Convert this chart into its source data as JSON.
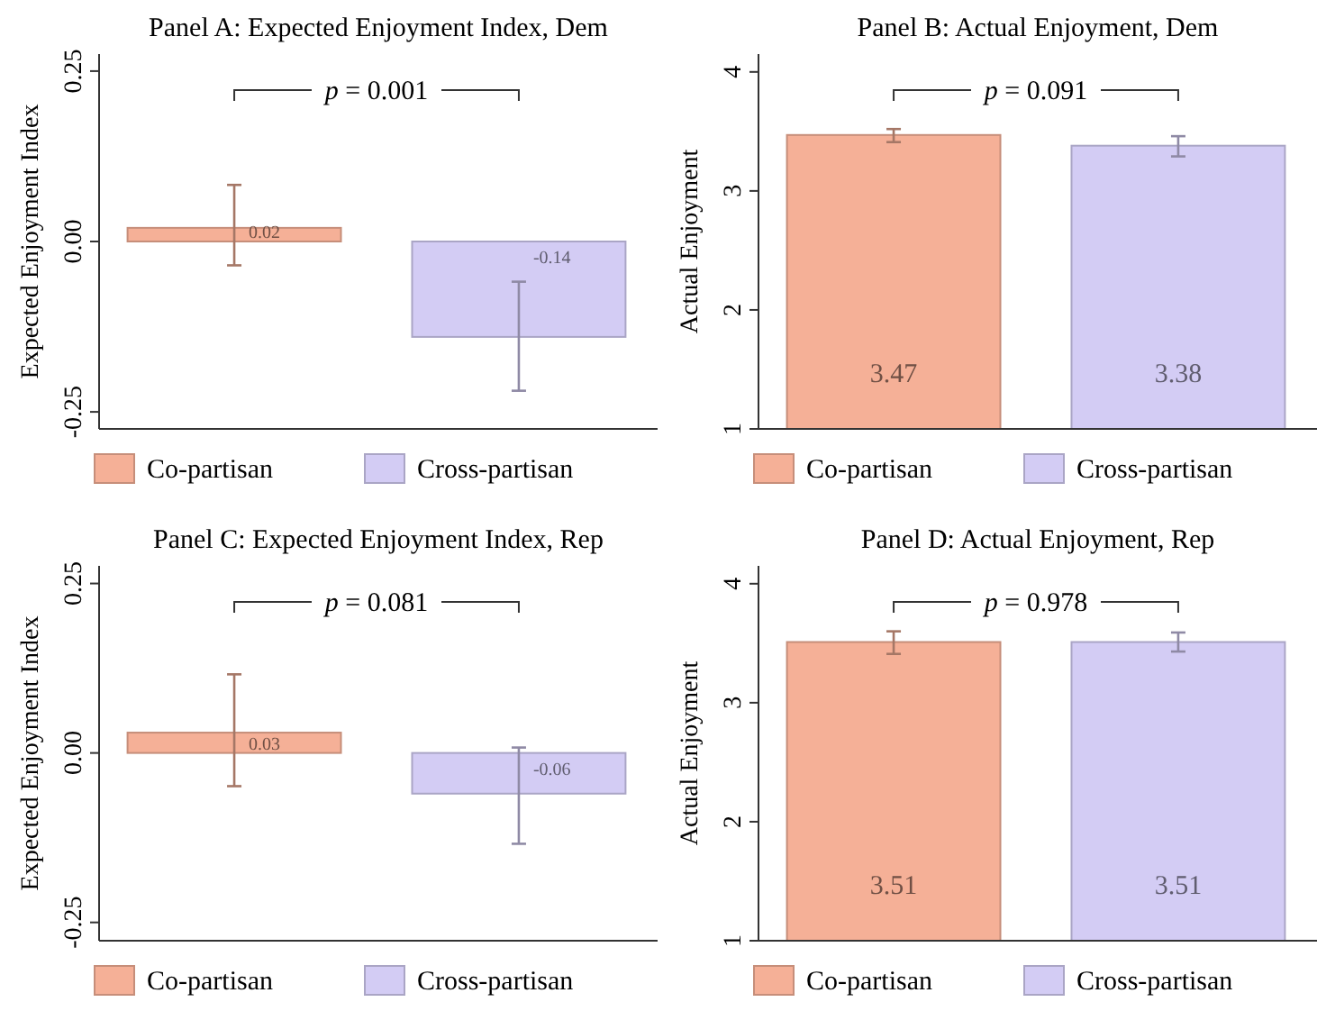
{
  "chart_data": [
    {
      "type": "bar",
      "title": "Panel A: Expected Enjoyment Index, Dem",
      "ylabel": "Expected Enjoyment Index",
      "categories": [
        null,
        null
      ],
      "ylim": [
        -0.275,
        0.275
      ],
      "yticks": [
        {
          "value": -0.25,
          "label": "-0.25"
        },
        {
          "value": 0,
          "label": "0.00"
        },
        {
          "value": 0.25,
          "label": "0.25"
        }
      ],
      "data_labels": true,
      "legend": "bottom",
      "annotations": [
        "p = 0.001"
      ],
      "series": [
        {
          "name": "Co-partisan",
          "color": "#f5b097",
          "values": [
            0.02,
            null
          ],
          "errors": [
            [
              -0.035,
              0.083
            ],
            null
          ]
        },
        {
          "name": "Cross-partisan",
          "color": "#d3ccf4",
          "values": [
            null,
            -0.14
          ],
          "errors": [
            null,
            [
              -0.219,
              -0.059
            ]
          ]
        }
      ]
    },
    {
      "type": "bar",
      "title": "Panel B: Actual Enjoyment, Dem",
      "ylabel": "Actual Enjoyment",
      "categories": [
        null,
        null
      ],
      "ylim": [
        1,
        4.15
      ],
      "yticks": [
        1,
        2,
        3,
        4
      ],
      "data_labels": true,
      "legend": "bottom",
      "annotations": [
        "p = 0.091"
      ],
      "series": [
        {
          "name": "Co-partisan",
          "color": "#f5b097",
          "values": [
            3.47,
            null
          ],
          "errors": [
            [
              3.41,
              3.52
            ],
            null
          ]
        },
        {
          "name": "Cross-partisan",
          "color": "#d3ccf4",
          "values": [
            null,
            3.38
          ],
          "errors": [
            null,
            [
              3.29,
              3.46
            ]
          ]
        }
      ]
    },
    {
      "type": "bar",
      "title": "Panel C: Expected Enjoyment Index, Rep",
      "ylabel": "Expected Enjoyment Index",
      "categories": [
        null,
        null
      ],
      "ylim": [
        -0.277,
        0.276
      ],
      "yticks": [
        {
          "value": -0.25,
          "label": "-0.25"
        },
        {
          "value": 0,
          "label": "0.00"
        },
        {
          "value": 0.25,
          "label": "0.25"
        }
      ],
      "data_labels": true,
      "legend": "bottom",
      "annotations": [
        "p = 0.081"
      ],
      "series": [
        {
          "name": "Co-partisan",
          "color": "#f5b097",
          "values": [
            0.03,
            null
          ],
          "errors": [
            [
              -0.049,
              0.116
            ],
            null
          ]
        },
        {
          "name": "Cross-partisan",
          "color": "#d3ccf4",
          "values": [
            null,
            -0.06
          ],
          "errors": [
            null,
            [
              -0.134,
              0.008
            ]
          ]
        }
      ]
    },
    {
      "type": "bar",
      "title": "Panel D: Actual Enjoyment, Rep",
      "ylabel": "Actual Enjoyment",
      "categories": [
        null,
        null
      ],
      "ylim": [
        1,
        4.15
      ],
      "yticks": [
        1,
        2,
        3,
        4
      ],
      "data_labels": true,
      "legend": "bottom",
      "annotations": [
        "p = 0.978"
      ],
      "series": [
        {
          "name": "Co-partisan",
          "color": "#f5b097",
          "values": [
            3.51,
            null
          ],
          "errors": [
            [
              3.41,
              3.6
            ],
            null
          ]
        },
        {
          "name": "Cross-partisan",
          "color": "#d3ccf4",
          "values": [
            null,
            3.51
          ],
          "errors": [
            null,
            [
              3.43,
              3.59
            ]
          ]
        }
      ]
    }
  ]
}
